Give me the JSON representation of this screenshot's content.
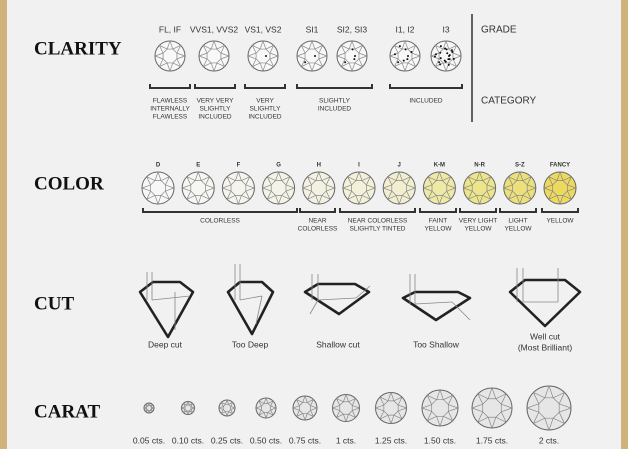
{
  "clarity": {
    "title": "CLARITY",
    "grade_heading": "GRADE",
    "category_heading": "CATEGORY",
    "grades": [
      "FL, IF",
      "VVS1, VVS2",
      "VS1, VS2",
      "SI1",
      "SI2, SI3",
      "I1, I2",
      "I3"
    ],
    "categories": [
      {
        "lines": [
          "FLAWLESS",
          "INTERNALLY",
          "FLAWLESS"
        ]
      },
      {
        "lines": [
          "VERY VERY",
          "SLIGHTLY",
          "INCLUDED"
        ]
      },
      {
        "lines": [
          "VERY",
          "SLIGHTLY",
          "INCLUDED"
        ]
      },
      {
        "lines": [
          "SLIGHTLY",
          "INCLUDED"
        ]
      },
      {
        "lines": [
          "INCLUDED"
        ]
      }
    ]
  },
  "color": {
    "title": "COLOR",
    "grades": [
      {
        "label": "D",
        "color": "#f7f7f7"
      },
      {
        "label": "E",
        "color": "#f6f6f2"
      },
      {
        "label": "F",
        "color": "#f5f5ee"
      },
      {
        "label": "G",
        "color": "#f4f3e8"
      },
      {
        "label": "H",
        "color": "#f3f2e2"
      },
      {
        "label": "I",
        "color": "#f3f1da"
      },
      {
        "label": "J",
        "color": "#f2efd0"
      },
      {
        "label": "K-M",
        "color": "#efe9a6"
      },
      {
        "label": "N-R",
        "color": "#ede58a"
      },
      {
        "label": "S-Z",
        "color": "#ece07a"
      },
      {
        "label": "FANCY",
        "color": "#ecd95e"
      }
    ],
    "categories": [
      {
        "lines": [
          "COLORLESS"
        ]
      },
      {
        "lines": [
          "NEAR",
          "COLORLESS"
        ]
      },
      {
        "lines": [
          "NEAR COLORLESS",
          "SLIGHTLY TINTED"
        ]
      },
      {
        "lines": [
          "FAINT",
          "YELLOW"
        ]
      },
      {
        "lines": [
          "VERY LIGHT",
          "YELLOW"
        ]
      },
      {
        "lines": [
          "LIGHT",
          "YELLOW"
        ]
      },
      {
        "lines": [
          "YELLOW"
        ]
      }
    ]
  },
  "cut": {
    "title": "CUT",
    "items": [
      {
        "lines": [
          "Deep cut"
        ]
      },
      {
        "lines": [
          "Too Deep"
        ]
      },
      {
        "lines": [
          "Shallow cut"
        ]
      },
      {
        "lines": [
          "Too Shallow"
        ]
      },
      {
        "lines": [
          "Well cut",
          "(Most Brilliant)"
        ]
      }
    ]
  },
  "carat": {
    "title": "CARAT",
    "items": [
      "0.05 cts.",
      "0.10 cts.",
      "0.25 cts.",
      "0.50 cts.",
      "0.75 cts.",
      "1 cts.",
      "1.25 cts.",
      "1.50 cts.",
      "1.75 cts.",
      "2 cts."
    ]
  }
}
